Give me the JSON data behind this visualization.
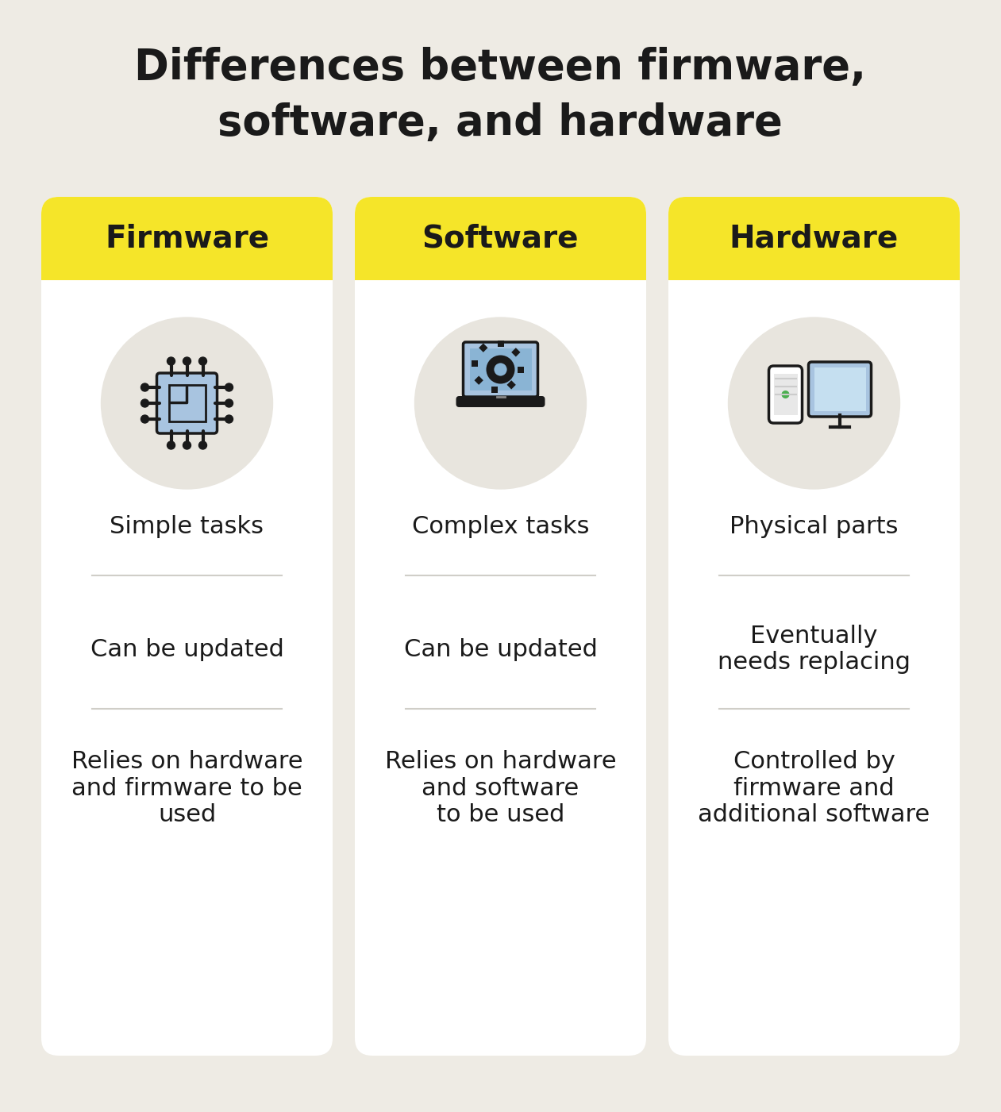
{
  "title_line1": "Differences between firmware,",
  "title_line2": "software, and hardware",
  "bg_color": "#eeebe4",
  "card_bg": "#ffffff",
  "header_color": "#f5e529",
  "header_text_color": "#1a1a1a",
  "title_color": "#1a1a1a",
  "body_text_color": "#1a1a1a",
  "divider_color": "#d0cec8",
  "icon_circle_color": "#e8e5de",
  "columns": [
    "Firmware",
    "Software",
    "Hardware"
  ],
  "rows": [
    [
      "Simple tasks",
      "Complex tasks",
      "Physical parts"
    ],
    [
      "Can be updated",
      "Can be updated",
      "Eventually\nneeds replacing"
    ],
    [
      "Relies on hardware\nand firmware to be\nused",
      "Relies on hardware\nand software\nto be used",
      "Controlled by\nfirmware and\nadditional software"
    ]
  ]
}
